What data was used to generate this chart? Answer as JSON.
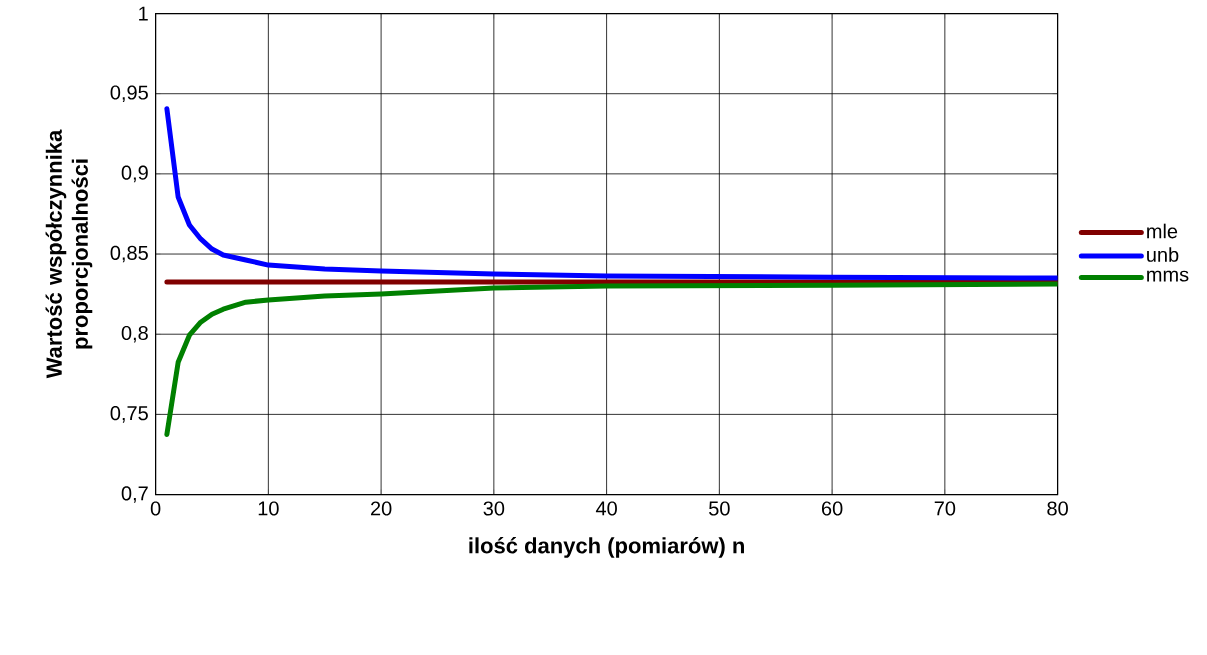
{
  "chart_data": {
    "type": "line",
    "xlabel": "ilość danych (pomiarów) n",
    "ylabel": "Wartość współczynnika proporcjonalności",
    "xlim": [
      0,
      80
    ],
    "xticks": [
      0,
      10,
      20,
      30,
      40,
      50,
      60,
      70,
      80
    ],
    "ylim": [
      0.7,
      1
    ],
    "yticks": [
      {
        "value": 0.7,
        "label": "0,7"
      },
      {
        "value": 0.75,
        "label": "0,75"
      },
      {
        "value": 0.8,
        "label": "0,8"
      },
      {
        "value": 0.85,
        "label": "0,85"
      },
      {
        "value": 0.9,
        "label": "0,9"
      },
      {
        "value": 0.95,
        "label": "0,95"
      },
      {
        "value": 1,
        "label": "1"
      }
    ],
    "grid": true,
    "legend": "right",
    "marker": "none",
    "line_style": "solid",
    "series": [
      {
        "name": "mle",
        "color": "#800000",
        "x": [
          1,
          80
        ],
        "values": [
          0.8325,
          0.8325
        ]
      },
      {
        "name": "unb",
        "color": "#0000ff",
        "x": [
          1,
          2,
          3,
          4,
          5,
          6,
          8,
          10,
          15,
          20,
          30,
          40,
          60,
          80
        ],
        "values": [
          0.9406,
          0.8856,
          0.8681,
          0.8594,
          0.8531,
          0.8494,
          0.8463,
          0.8431,
          0.8406,
          0.8394,
          0.8375,
          0.8363,
          0.8356,
          0.835
        ]
      },
      {
        "name": "mms",
        "color": "#008000",
        "x": [
          1,
          2,
          3,
          4,
          5,
          6,
          8,
          10,
          15,
          20,
          30,
          40,
          60,
          80
        ],
        "values": [
          0.7375,
          0.7825,
          0.7994,
          0.8075,
          0.8125,
          0.8156,
          0.82,
          0.8213,
          0.8238,
          0.825,
          0.8288,
          0.83,
          0.8306,
          0.8313
        ]
      }
    ]
  }
}
